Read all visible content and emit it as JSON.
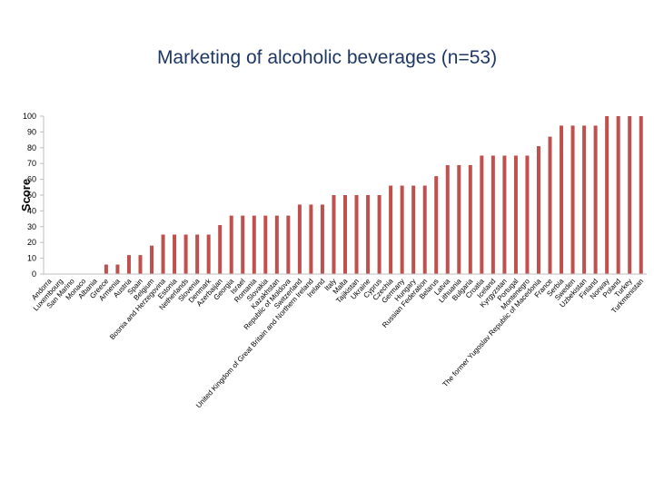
{
  "chart_data": {
    "type": "bar",
    "title": "Marketing of alcoholic beverages (n=53)",
    "xlabel": "",
    "ylabel": "Score",
    "ylim": [
      0,
      100
    ],
    "yticks": [
      0,
      10,
      20,
      30,
      40,
      50,
      60,
      70,
      80,
      90,
      100
    ],
    "grid": false,
    "legend": "none",
    "bar_color": "#c0504d",
    "categories": [
      "Andorra",
      "Luxembourg",
      "San Marino",
      "Monaco",
      "Albania",
      "Greece",
      "Armenia",
      "Austria",
      "Spain",
      "Belgium",
      "Bosnia and Herzegovina",
      "Estonia",
      "Netherlands",
      "Slovenia",
      "Denmark",
      "Azerbaijan",
      "Georgia",
      "Israel",
      "Romania",
      "Slovakia",
      "Kazakhstan",
      "Republic of Moldova",
      "Switzerland",
      "United Kingdom of Great Britain and Northern Ireland",
      "Ireland",
      "Italy",
      "Malta",
      "Tajikistan",
      "Ukraine",
      "Cyprus",
      "Czechia",
      "Germany",
      "Hungary",
      "Russian Federation",
      "Belarus",
      "Latvia",
      "Lithuania",
      "Bulgaria",
      "Croatia",
      "Iceland",
      "Kyrgyzstan",
      "Portugal",
      "Montenegro",
      "The former Yugoslav Republic of Macedonia",
      "France",
      "Serbia",
      "Sweden",
      "Uzbekistan",
      "Finland",
      "Norway",
      "Poland",
      "Turkey",
      "Turkmenistan"
    ],
    "values": [
      0,
      0,
      0,
      0,
      0,
      6,
      6,
      12,
      12,
      18,
      25,
      25,
      25,
      25,
      25,
      31,
      37,
      37,
      37,
      37,
      37,
      37,
      44,
      44,
      44,
      50,
      50,
      50,
      50,
      50,
      56,
      56,
      56,
      56,
      62,
      69,
      69,
      69,
      75,
      75,
      75,
      75,
      75,
      81,
      87,
      94,
      94,
      94,
      94,
      100,
      100,
      100,
      100
    ]
  }
}
